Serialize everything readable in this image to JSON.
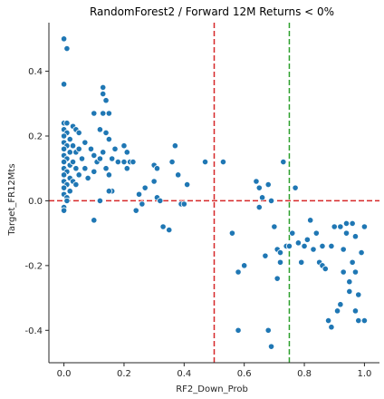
{
  "chart_data": {
    "type": "scatter",
    "title": "RandomForest2 / Forward 12M Returns < 0%",
    "xlabel": "RF2_Down_Prob",
    "ylabel": "Target_FR12Mts",
    "xlim": [
      -0.05,
      1.05
    ],
    "ylim": [
      -0.5,
      0.55
    ],
    "xticks": [
      "0.0",
      "0.2",
      "0.4",
      "0.6",
      "0.8",
      "1.0"
    ],
    "yticks": [
      "-0.4",
      "-0.2",
      "0.0",
      "0.2",
      "0.4"
    ],
    "grid": false,
    "point_color": "#1f77b4",
    "reference_lines": [
      {
        "orientation": "horizontal",
        "value": 0.0,
        "color": "#d62728",
        "style": "dashed"
      },
      {
        "orientation": "vertical",
        "value": 0.5,
        "color": "#d62728",
        "style": "dashed"
      },
      {
        "orientation": "vertical",
        "value": 0.75,
        "color": "#2ca02c",
        "style": "dashed"
      }
    ],
    "points": [
      [
        0.0,
        0.5
      ],
      [
        0.01,
        0.47
      ],
      [
        0.0,
        0.36
      ],
      [
        0.0,
        0.24
      ],
      [
        0.01,
        0.24
      ],
      [
        0.0,
        0.22
      ],
      [
        0.01,
        0.21
      ],
      [
        0.0,
        0.2
      ],
      [
        0.02,
        0.19
      ],
      [
        0.0,
        0.18
      ],
      [
        0.01,
        0.17
      ],
      [
        0.0,
        0.16
      ],
      [
        0.02,
        0.15
      ],
      [
        0.0,
        0.14
      ],
      [
        0.01,
        0.13
      ],
      [
        0.0,
        0.12
      ],
      [
        0.02,
        0.11
      ],
      [
        0.0,
        0.1
      ],
      [
        0.01,
        0.09
      ],
      [
        0.0,
        0.08
      ],
      [
        0.02,
        0.07
      ],
      [
        0.0,
        0.06
      ],
      [
        0.01,
        0.05
      ],
      [
        0.0,
        0.04
      ],
      [
        0.02,
        0.03
      ],
      [
        0.0,
        0.02
      ],
      [
        0.01,
        0.01
      ],
      [
        0.0,
        -0.02
      ],
      [
        0.0,
        -0.03
      ],
      [
        0.01,
        0.0
      ],
      [
        0.03,
        0.23
      ],
      [
        0.04,
        0.22
      ],
      [
        0.03,
        0.17
      ],
      [
        0.04,
        0.15
      ],
      [
        0.05,
        0.16
      ],
      [
        0.03,
        0.12
      ],
      [
        0.04,
        0.1
      ],
      [
        0.05,
        0.08
      ],
      [
        0.03,
        0.06
      ],
      [
        0.04,
        0.05
      ],
      [
        0.05,
        0.21
      ],
      [
        0.06,
        0.13
      ],
      [
        0.07,
        0.1
      ],
      [
        0.07,
        0.18
      ],
      [
        0.08,
        0.07
      ],
      [
        0.09,
        0.16
      ],
      [
        0.1,
        0.27
      ],
      [
        0.1,
        0.14
      ],
      [
        0.11,
        0.12
      ],
      [
        0.1,
        0.09
      ],
      [
        0.1,
        -0.06
      ],
      [
        0.12,
        0.13
      ],
      [
        0.13,
        0.35
      ],
      [
        0.13,
        0.33
      ],
      [
        0.14,
        0.31
      ],
      [
        0.13,
        0.27
      ],
      [
        0.15,
        0.27
      ],
      [
        0.12,
        0.22
      ],
      [
        0.14,
        0.21
      ],
      [
        0.15,
        0.19
      ],
      [
        0.13,
        0.15
      ],
      [
        0.14,
        0.1
      ],
      [
        0.15,
        0.08
      ],
      [
        0.16,
        0.13
      ],
      [
        0.17,
        0.16
      ],
      [
        0.18,
        0.12
      ],
      [
        0.16,
        0.03
      ],
      [
        0.15,
        0.03
      ],
      [
        0.12,
        0.0
      ],
      [
        0.2,
        0.17
      ],
      [
        0.21,
        0.15
      ],
      [
        0.2,
        0.12
      ],
      [
        0.21,
        0.1
      ],
      [
        0.22,
        0.12
      ],
      [
        0.23,
        0.12
      ],
      [
        0.24,
        -0.03
      ],
      [
        0.25,
        0.02
      ],
      [
        0.26,
        -0.01
      ],
      [
        0.27,
        0.04
      ],
      [
        0.3,
        0.11
      ],
      [
        0.31,
        0.1
      ],
      [
        0.3,
        0.06
      ],
      [
        0.31,
        0.01
      ],
      [
        0.32,
        0.0
      ],
      [
        0.33,
        -0.08
      ],
      [
        0.35,
        -0.09
      ],
      [
        0.36,
        0.12
      ],
      [
        0.37,
        0.17
      ],
      [
        0.38,
        0.08
      ],
      [
        0.39,
        -0.01
      ],
      [
        0.4,
        -0.01
      ],
      [
        0.41,
        0.05
      ],
      [
        0.47,
        0.12
      ],
      [
        0.53,
        0.12
      ],
      [
        0.56,
        -0.1
      ],
      [
        0.58,
        -0.22
      ],
      [
        0.58,
        -0.4
      ],
      [
        0.6,
        -0.2
      ],
      [
        0.64,
        0.06
      ],
      [
        0.65,
        0.04
      ],
      [
        0.65,
        -0.02
      ],
      [
        0.66,
        0.01
      ],
      [
        0.67,
        -0.17
      ],
      [
        0.68,
        0.05
      ],
      [
        0.69,
        0.0
      ],
      [
        0.68,
        -0.4
      ],
      [
        0.69,
        -0.45
      ],
      [
        0.7,
        -0.08
      ],
      [
        0.71,
        -0.15
      ],
      [
        0.71,
        -0.24
      ],
      [
        0.72,
        -0.16
      ],
      [
        0.72,
        -0.19
      ],
      [
        0.73,
        0.12
      ],
      [
        0.74,
        -0.14
      ],
      [
        0.75,
        -0.14
      ],
      [
        0.76,
        -0.1
      ],
      [
        0.77,
        0.04
      ],
      [
        0.78,
        -0.13
      ],
      [
        0.79,
        -0.19
      ],
      [
        0.8,
        -0.14
      ],
      [
        0.81,
        -0.12
      ],
      [
        0.82,
        -0.06
      ],
      [
        0.83,
        -0.15
      ],
      [
        0.84,
        -0.1
      ],
      [
        0.85,
        -0.19
      ],
      [
        0.86,
        -0.2
      ],
      [
        0.86,
        -0.14
      ],
      [
        0.87,
        -0.21
      ],
      [
        0.88,
        -0.37
      ],
      [
        0.89,
        -0.39
      ],
      [
        0.9,
        -0.08
      ],
      [
        0.91,
        -0.34
      ],
      [
        0.92,
        -0.08
      ],
      [
        0.93,
        -0.15
      ],
      [
        0.93,
        -0.22
      ],
      [
        0.94,
        -0.07
      ],
      [
        0.95,
        -0.25
      ],
      [
        0.95,
        -0.28
      ],
      [
        0.96,
        -0.19
      ],
      [
        0.97,
        -0.11
      ],
      [
        0.97,
        -0.34
      ],
      [
        0.98,
        -0.29
      ],
      [
        0.99,
        -0.16
      ],
      [
        0.98,
        -0.37
      ],
      [
        1.0,
        -0.08
      ],
      [
        1.0,
        -0.37
      ],
      [
        0.94,
        -0.1
      ],
      [
        0.96,
        -0.07
      ],
      [
        0.97,
        -0.22
      ],
      [
        0.92,
        -0.32
      ],
      [
        0.89,
        -0.14
      ]
    ]
  }
}
